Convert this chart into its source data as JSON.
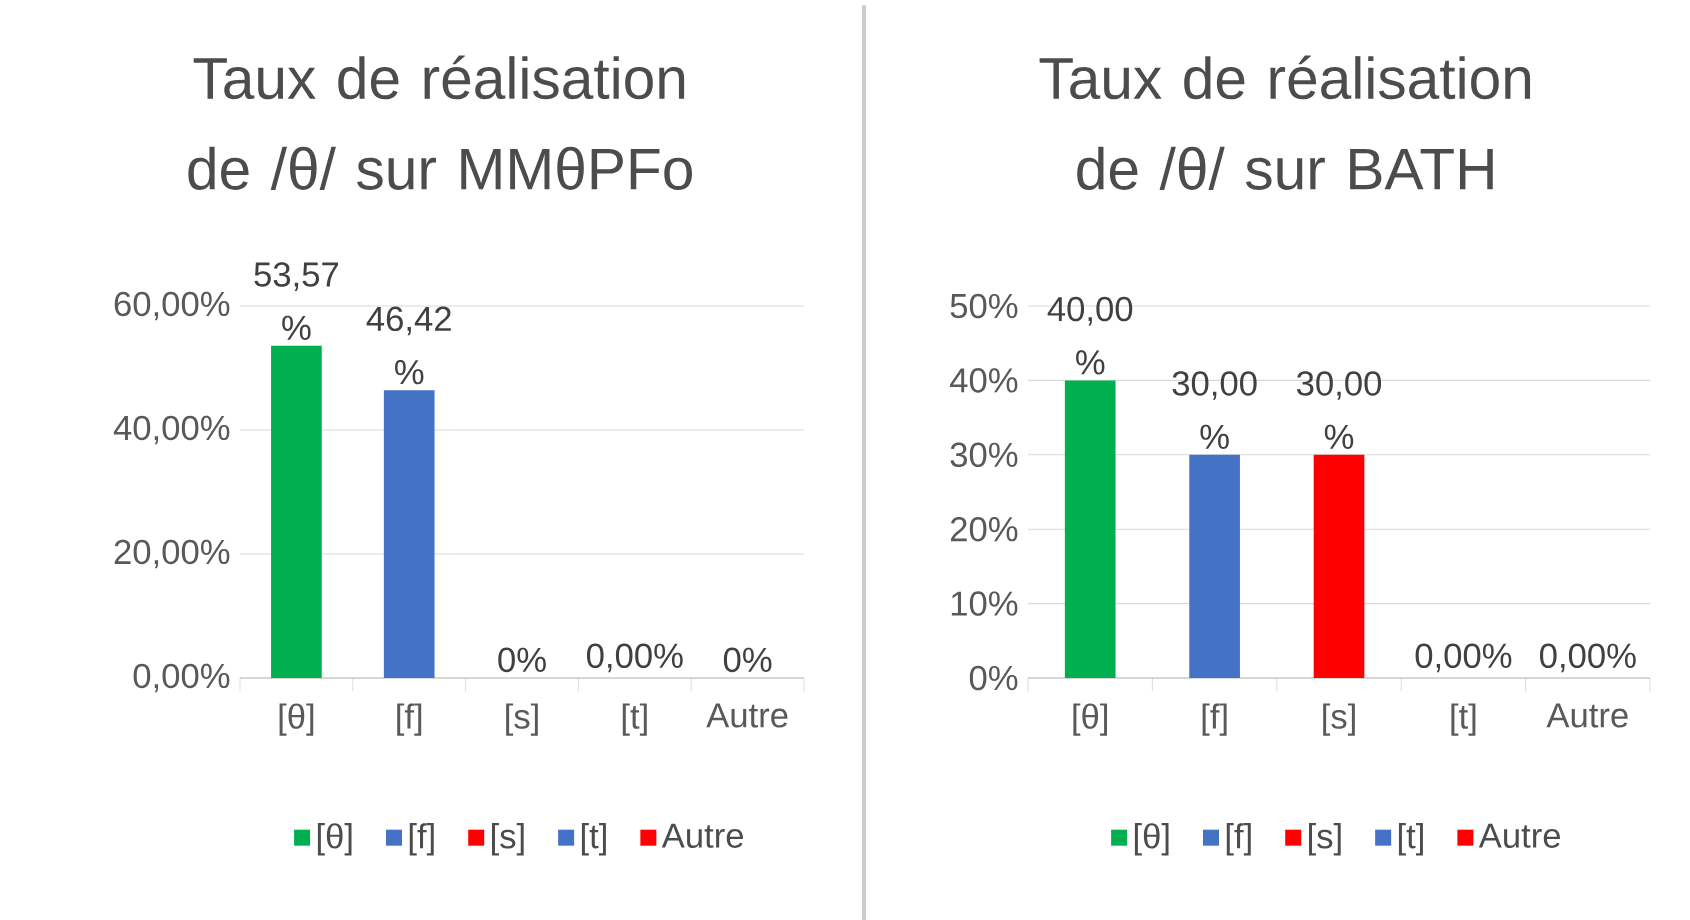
{
  "chart_data": [
    {
      "type": "bar",
      "title": "Taux de réalisation de /θ/ sur MMθPFo",
      "categories": [
        "[θ]",
        "[f]",
        "[s]",
        "[t]",
        "Autre"
      ],
      "series": [
        {
          "name": "[θ]",
          "color": "#00b050",
          "values": [
            53.57,
            null,
            null,
            null,
            null
          ],
          "value_labels": [
            "53,57 %",
            null,
            null,
            null,
            null
          ]
        },
        {
          "name": "[f]",
          "color": "#4472c4",
          "values": [
            null,
            46.42,
            null,
            null,
            null
          ],
          "value_labels": [
            null,
            "46,42 %",
            null,
            null,
            null
          ]
        },
        {
          "name": "[s]",
          "color": "#ff0000",
          "values": [
            null,
            null,
            0,
            null,
            null
          ],
          "value_labels": [
            null,
            null,
            "0%",
            null,
            null
          ]
        },
        {
          "name": "[t]",
          "color": "#4472c4",
          "values": [
            null,
            null,
            null,
            0,
            null
          ],
          "value_labels": [
            null,
            null,
            null,
            "0,00%",
            null
          ]
        },
        {
          "name": "Autre",
          "color": "#ff0000",
          "values": [
            null,
            null,
            null,
            null,
            0
          ],
          "value_labels": [
            null,
            null,
            null,
            null,
            "0%"
          ]
        }
      ],
      "ylim": [
        0,
        60
      ],
      "yticks": [
        {
          "value": 0,
          "label": "0,00%"
        },
        {
          "value": 20,
          "label": "20,00%"
        },
        {
          "value": 40,
          "label": "40,00%"
        },
        {
          "value": 60,
          "label": "60,00%"
        }
      ],
      "grid": "y",
      "legend": "bottom"
    },
    {
      "type": "bar",
      "title": "Taux de réalisation de /θ/ sur BATH",
      "categories": [
        "[θ]",
        "[f]",
        "[s]",
        "[t]",
        "Autre"
      ],
      "series": [
        {
          "name": "[θ]",
          "color": "#00b050",
          "values": [
            40,
            null,
            null,
            null,
            null
          ],
          "value_labels": [
            "40,00 %",
            null,
            null,
            null,
            null
          ]
        },
        {
          "name": "[f]",
          "color": "#4472c4",
          "values": [
            null,
            30,
            null,
            null,
            null
          ],
          "value_labels": [
            null,
            "30,00 %",
            null,
            null,
            null
          ]
        },
        {
          "name": "[s]",
          "color": "#ff0000",
          "values": [
            null,
            null,
            30,
            null,
            null
          ],
          "value_labels": [
            null,
            null,
            "30,00 %",
            null,
            null
          ]
        },
        {
          "name": "[t]",
          "color": "#4472c4",
          "values": [
            null,
            null,
            null,
            0,
            null
          ],
          "value_labels": [
            null,
            null,
            null,
            "0,00%",
            null
          ]
        },
        {
          "name": "Autre",
          "color": "#ff0000",
          "values": [
            null,
            null,
            null,
            null,
            0
          ],
          "value_labels": [
            null,
            null,
            null,
            null,
            "0,00%"
          ]
        }
      ],
      "ylim": [
        0,
        50
      ],
      "yticks": [
        {
          "value": 0,
          "label": "0%"
        },
        {
          "value": 10,
          "label": "10%"
        },
        {
          "value": 20,
          "label": "20%"
        },
        {
          "value": 30,
          "label": "30%"
        },
        {
          "value": 40,
          "label": "40%"
        },
        {
          "value": 50,
          "label": "50%"
        }
      ],
      "grid": "y",
      "legend": "bottom"
    }
  ]
}
